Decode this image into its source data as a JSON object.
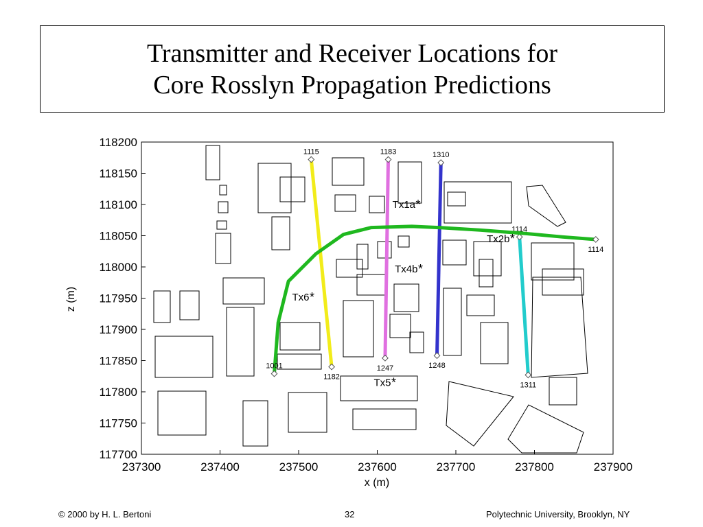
{
  "header": {
    "title": [
      "Transmitter and Receiver Locations for",
      "Core Rosslyn Propagation Predictions"
    ]
  },
  "chart_data": {
    "type": "route-map",
    "x_label": "x (m)",
    "y_label": "z (m)",
    "xlim": [
      237300,
      237900
    ],
    "xticks": [
      237300,
      237400,
      237500,
      237600,
      237700,
      237800,
      237900
    ],
    "ylim": [
      117700,
      118200
    ],
    "yticks": [
      117700,
      117750,
      117800,
      117850,
      117900,
      117950,
      118000,
      118050,
      118100,
      118150,
      118200
    ],
    "routes": [
      {
        "color": "#f2ec1a",
        "start_label": "1115",
        "end_label": "1182",
        "x": [
          237516,
          237542
        ],
        "y": [
          118172,
          117840
        ]
      },
      {
        "color": "#e070e0",
        "start_label": "1183",
        "end_label": "1247",
        "x": [
          237614,
          237610
        ],
        "y": [
          118172,
          117854
        ]
      },
      {
        "color": "#3333cc",
        "start_label": "1310",
        "end_label": "1248",
        "x": [
          237681,
          237676
        ],
        "y": [
          118167,
          117858
        ]
      },
      {
        "color": "#22cccc",
        "start_label": "1114",
        "end_label": "1311",
        "x": [
          237781,
          237792
        ],
        "y": [
          118048,
          117827
        ]
      },
      {
        "color": "#1fb81f",
        "start_label": "1001",
        "end_label": "1114",
        "x": [
          237469,
          237474,
          237487,
          237522,
          237557,
          237592,
          237644,
          237679,
          237731,
          237784,
          237836,
          237878
        ],
        "y": [
          117829,
          117911,
          117977,
          118021,
          118052,
          118063,
          118065,
          118063,
          118059,
          118054,
          118048,
          118044
        ]
      }
    ],
    "transmitters": {
      "labels": [
        "Tx1a",
        "Tx2b",
        "Tx4b",
        "Tx6",
        "Tx5"
      ],
      "x": [
        237652,
        237772,
        237655,
        237517,
        237621
      ],
      "y": [
        118101,
        118046,
        117998,
        117953,
        117816
      ]
    }
  },
  "footer": {
    "left": "© 2000 by H. L. Bertoni",
    "center": "32",
    "right": "Polytechnic University, Brooklyn, NY"
  }
}
